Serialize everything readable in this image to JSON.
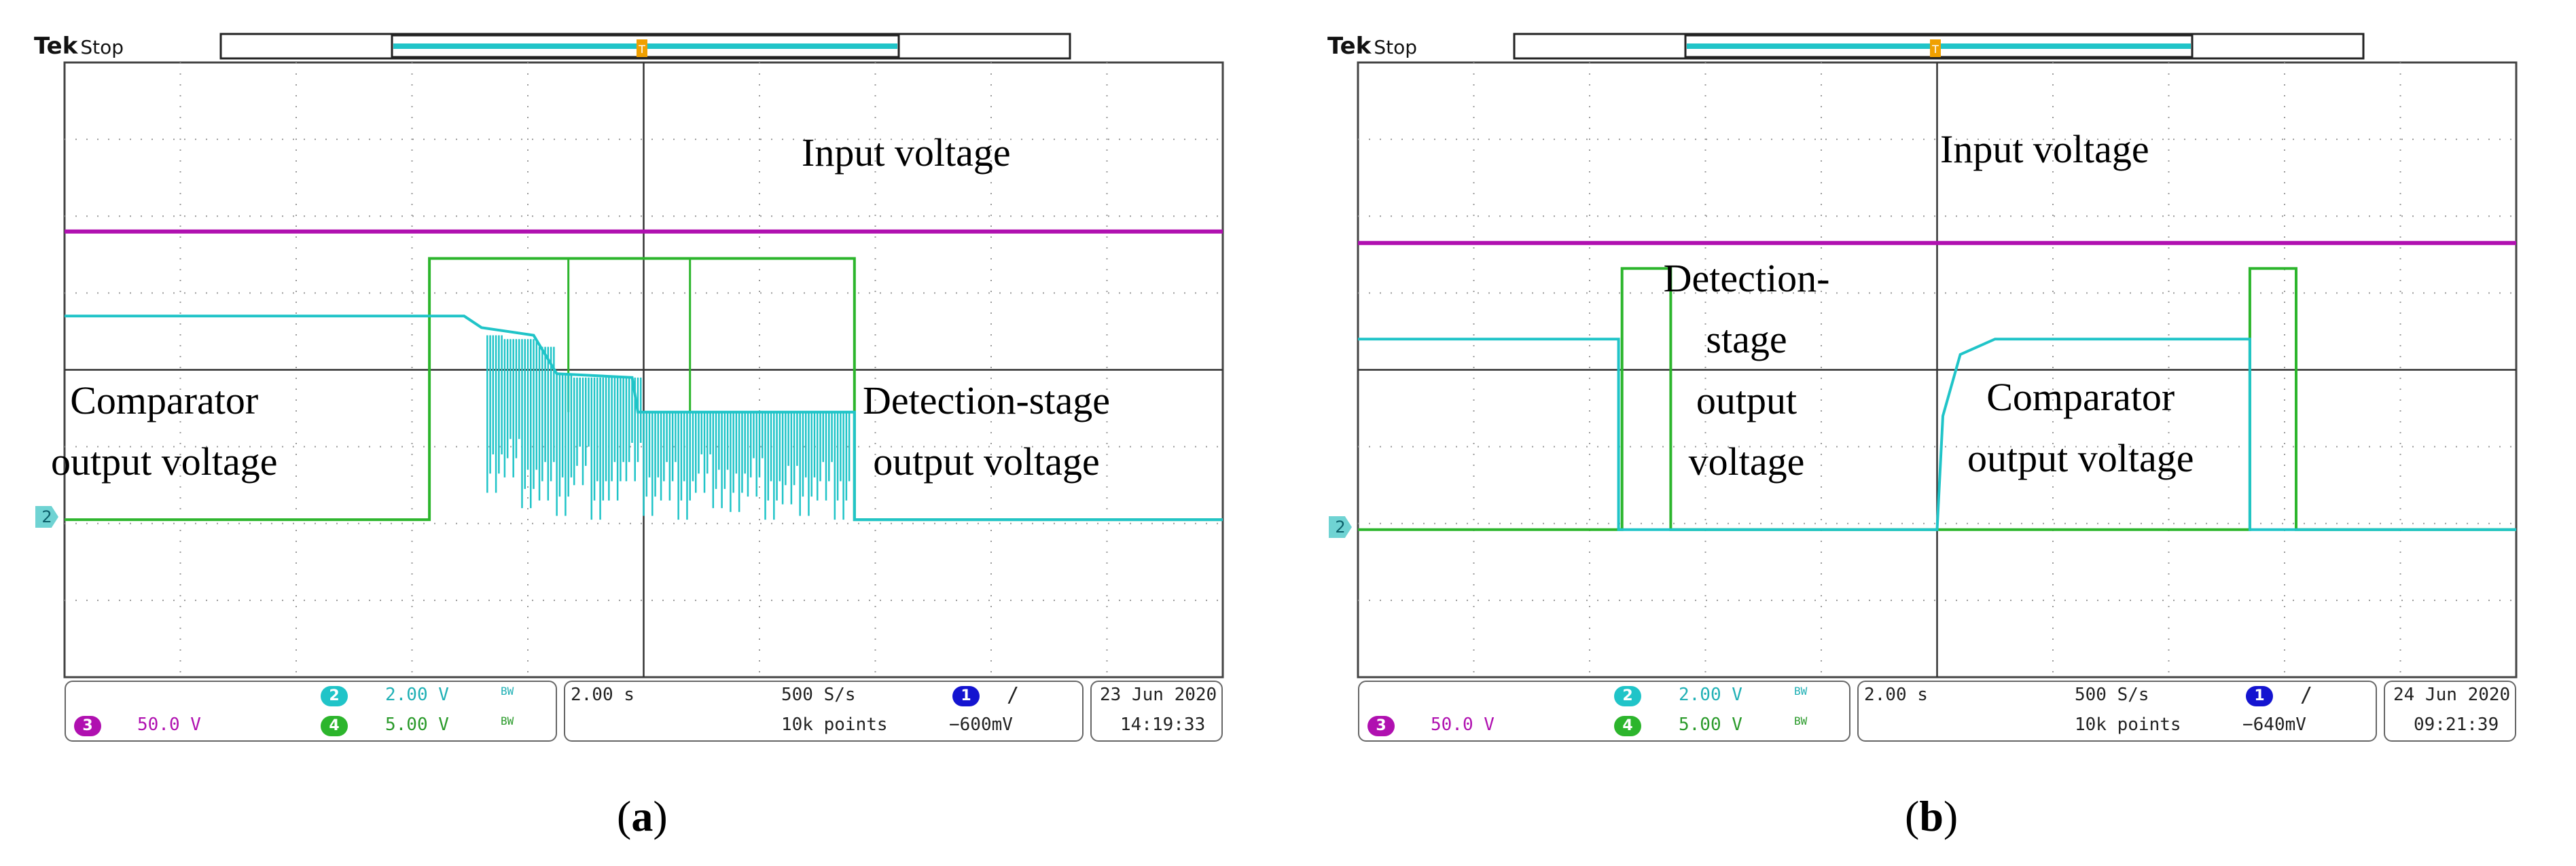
{
  "colors": {
    "ch2_cyan": "#20c4c8",
    "ch3_magenta": "#b010b0",
    "ch4_green": "#2cb52c",
    "ch1_blue": "#1414d0",
    "grid": "#9a9a9a",
    "frame": "#444444"
  },
  "panels": [
    {
      "brand": "Tek",
      "mode": "Stop",
      "ch2_marker": "2",
      "labels": {
        "input": "Input voltage",
        "comparator_1": "Comparator",
        "comparator_2": "output voltage",
        "detection_1": "Detection-stage",
        "detection_2": "output voltage"
      },
      "status": {
        "ch2_num": "2",
        "ch2_scale": "2.00 V",
        "ch3_num": "3",
        "ch3_scale": "50.0 V",
        "ch4_num": "4",
        "ch4_scale": "5.00 V",
        "bw1": "BW",
        "bw2": "BW",
        "timebase": "2.00 s",
        "sample_rate": "500 S/s",
        "record": "10k points",
        "trig_ch": "1",
        "trig_slope": "/",
        "trig_level": "−600mV",
        "date": "23 Jun  2020",
        "time": "14:19:33"
      },
      "caption": "a"
    },
    {
      "brand": "Tek",
      "mode": "Stop",
      "ch2_marker": "2",
      "labels": {
        "input": "Input voltage",
        "detection_1": "Detection-",
        "detection_2": "stage",
        "detection_3": "output",
        "detection_4": "voltage",
        "comparator_1": "Comparator",
        "comparator_2": "output voltage"
      },
      "status": {
        "ch2_num": "2",
        "ch2_scale": "2.00 V",
        "ch3_num": "3",
        "ch3_scale": "50.0 V",
        "ch4_num": "4",
        "ch4_scale": "5.00 V",
        "bw1": "BW",
        "bw2": "BW",
        "timebase": "2.00 s",
        "sample_rate": "500 S/s",
        "record": "10k points",
        "trig_ch": "1",
        "trig_slope": "/",
        "trig_level": "−640mV",
        "date": "24 Jun  2020",
        "time": "09:21:39"
      },
      "caption": "b"
    }
  ],
  "waveforms": [
    {
      "ch3": [
        [
          0,
          5.8
        ],
        [
          10,
          5.8
        ]
      ],
      "ch4": [
        [
          0,
          2.05
        ],
        [
          3.15,
          2.05
        ],
        [
          3.15,
          5.45
        ],
        [
          6.82,
          5.45
        ],
        [
          6.82,
          2.05
        ],
        [
          10,
          2.05
        ]
      ],
      "ch2": [
        [
          0,
          4.7
        ],
        [
          3.45,
          4.7
        ],
        [
          3.6,
          4.55
        ],
        [
          4.05,
          4.45
        ],
        [
          4.25,
          3.95
        ],
        [
          4.9,
          3.9
        ],
        [
          4.95,
          3.45
        ],
        [
          6.82,
          3.45
        ],
        [
          6.82,
          2.05
        ],
        [
          10,
          2.05
        ]
      ],
      "ch2_noise": [
        [
          3.65,
          4.45,
          2.4
        ],
        [
          3.8,
          4.4,
          2.6
        ],
        [
          3.95,
          4.4,
          2.2
        ],
        [
          4.1,
          4.3,
          2.3
        ],
        [
          4.25,
          3.95,
          2.1
        ],
        [
          4.4,
          3.9,
          2.5
        ],
        [
          4.55,
          3.9,
          2.05
        ],
        [
          4.7,
          3.9,
          2.3
        ],
        [
          4.85,
          3.9,
          2.55
        ],
        [
          5.0,
          3.45,
          2.1
        ],
        [
          5.15,
          3.45,
          2.3
        ],
        [
          5.3,
          3.45,
          2.05
        ],
        [
          5.45,
          3.45,
          2.4
        ],
        [
          5.6,
          3.45,
          2.2
        ],
        [
          5.75,
          3.45,
          2.15
        ],
        [
          5.9,
          3.45,
          2.35
        ],
        [
          6.05,
          3.45,
          2.05
        ],
        [
          6.2,
          3.45,
          2.25
        ],
        [
          6.35,
          3.45,
          2.1
        ],
        [
          6.5,
          3.45,
          2.3
        ],
        [
          6.65,
          3.45,
          2.05
        ]
      ],
      "ch4_spikes": [
        4.35,
        5.4
      ]
    },
    {
      "ch3": [
        [
          0,
          5.65
        ],
        [
          10,
          5.65
        ]
      ],
      "ch4": [
        [
          0,
          1.92
        ],
        [
          2.28,
          1.92
        ],
        [
          2.28,
          5.32
        ],
        [
          2.7,
          5.32
        ],
        [
          2.7,
          1.92
        ],
        [
          7.7,
          1.92
        ],
        [
          7.7,
          5.32
        ],
        [
          8.1,
          5.32
        ],
        [
          8.1,
          1.92
        ],
        [
          10,
          1.92
        ]
      ],
      "ch2": [
        [
          0,
          4.4
        ],
        [
          2.25,
          4.4
        ],
        [
          2.25,
          1.92
        ],
        [
          5.0,
          1.92
        ],
        [
          5.05,
          3.4
        ],
        [
          5.2,
          4.2
        ],
        [
          5.5,
          4.4
        ],
        [
          7.7,
          4.4
        ],
        [
          7.7,
          1.92
        ],
        [
          10,
          1.92
        ]
      ],
      "ch2_noise": [],
      "ch4_spikes": []
    }
  ]
}
